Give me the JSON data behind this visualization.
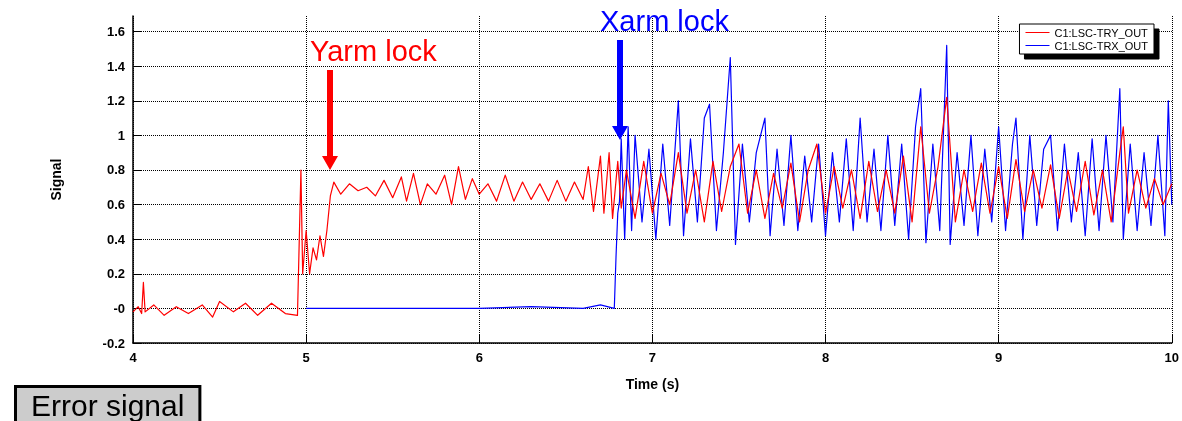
{
  "chart_data": {
    "type": "line",
    "xlabel": "Time (s)",
    "ylabel": "Signal",
    "xlim": [
      4,
      10
    ],
    "xticks": [
      4,
      5,
      6,
      7,
      8,
      9,
      10
    ],
    "ylim": [
      -0.2,
      1.69
    ],
    "yticks": [
      -0.2,
      {
        "value": 0,
        "label": "-0"
      },
      0.2,
      0.4,
      0.6,
      0.8,
      1,
      1.2,
      1.4,
      1.6
    ],
    "grid": true,
    "legend": "top right",
    "marker": "none",
    "line_style": "solid",
    "series": [
      {
        "name": "C1:LSC-TRY_OUT",
        "color": "#ff0000",
        "x": [
          4.0,
          4.03,
          4.05,
          4.06,
          4.07,
          4.12,
          4.18,
          4.25,
          4.32,
          4.4,
          4.46,
          4.5,
          4.58,
          4.65,
          4.72,
          4.8,
          4.88,
          4.95,
          4.97,
          4.98,
          5.0,
          5.02,
          5.04,
          5.06,
          5.08,
          5.1,
          5.12,
          5.14,
          5.16,
          5.2,
          5.25,
          5.3,
          5.35,
          5.4,
          5.45,
          5.5,
          5.55,
          5.58,
          5.62,
          5.66,
          5.7,
          5.75,
          5.8,
          5.84,
          5.88,
          5.92,
          5.96,
          6.0,
          6.05,
          6.1,
          6.15,
          6.2,
          6.25,
          6.3,
          6.35,
          6.4,
          6.45,
          6.5,
          6.55,
          6.6,
          6.63,
          6.66,
          6.7,
          6.72,
          6.75,
          6.77,
          6.8,
          6.82,
          6.85,
          6.9,
          6.95,
          7.0,
          7.05,
          7.1,
          7.15,
          7.2,
          7.25,
          7.3,
          7.35,
          7.4,
          7.45,
          7.5,
          7.55,
          7.6,
          7.65,
          7.7,
          7.75,
          7.8,
          7.85,
          7.9,
          7.95,
          8.0,
          8.05,
          8.1,
          8.15,
          8.2,
          8.25,
          8.3,
          8.35,
          8.4,
          8.45,
          8.5,
          8.55,
          8.6,
          8.65,
          8.7,
          8.75,
          8.8,
          8.85,
          8.9,
          8.95,
          9.0,
          9.05,
          9.1,
          9.15,
          9.2,
          9.25,
          9.3,
          9.35,
          9.4,
          9.45,
          9.5,
          9.55,
          9.6,
          9.65,
          9.7,
          9.72,
          9.75,
          9.8,
          9.85,
          9.9,
          9.95,
          10.0
        ],
        "values": [
          -0.02,
          0.01,
          -0.03,
          0.15,
          -0.02,
          0.02,
          -0.04,
          0.01,
          -0.03,
          0.02,
          -0.05,
          0.04,
          -0.02,
          0.03,
          -0.04,
          0.03,
          -0.03,
          -0.04,
          0.8,
          0.2,
          0.45,
          0.2,
          0.35,
          0.28,
          0.42,
          0.3,
          0.45,
          0.65,
          0.73,
          0.66,
          0.72,
          0.68,
          0.7,
          0.65,
          0.74,
          0.64,
          0.76,
          0.62,
          0.78,
          0.6,
          0.72,
          0.66,
          0.77,
          0.6,
          0.82,
          0.63,
          0.75,
          0.66,
          0.72,
          0.62,
          0.77,
          0.62,
          0.73,
          0.63,
          0.72,
          0.62,
          0.74,
          0.62,
          0.73,
          0.63,
          0.82,
          0.56,
          0.88,
          0.55,
          0.9,
          0.52,
          0.85,
          0.58,
          0.8,
          0.52,
          0.85,
          0.55,
          0.78,
          0.6,
          0.9,
          0.55,
          0.8,
          0.5,
          0.85,
          0.56,
          0.82,
          0.95,
          0.55,
          0.8,
          0.52,
          0.78,
          0.58,
          0.84,
          0.5,
          0.8,
          0.95,
          0.55,
          0.82,
          0.58,
          0.8,
          0.52,
          0.85,
          0.56,
          0.8,
          0.55,
          0.88,
          0.5,
          1.05,
          0.55,
          0.82,
          1.22,
          0.5,
          0.8,
          0.56,
          0.84,
          0.55,
          0.82,
          0.52,
          0.86,
          0.56,
          0.8,
          0.58,
          0.83,
          0.52,
          0.8,
          0.56,
          0.85,
          0.54,
          0.8,
          0.5,
          0.9,
          1.05,
          0.55,
          0.8,
          0.58,
          0.75,
          0.6,
          0.72
        ]
      },
      {
        "name": "C1:LSC-TRX_OUT",
        "color": "#0000ff",
        "x": [
          5.0,
          5.5,
          6.0,
          6.3,
          6.6,
          6.7,
          6.78,
          6.79,
          6.8,
          6.81,
          6.82,
          6.84,
          6.86,
          6.88,
          6.9,
          6.94,
          6.98,
          7.02,
          7.06,
          7.1,
          7.15,
          7.18,
          7.22,
          7.26,
          7.3,
          7.33,
          7.37,
          7.41,
          7.45,
          7.48,
          7.52,
          7.56,
          7.6,
          7.65,
          7.68,
          7.72,
          7.76,
          7.8,
          7.84,
          7.88,
          7.92,
          7.96,
          8.0,
          8.04,
          8.08,
          8.12,
          8.16,
          8.2,
          8.24,
          8.28,
          8.32,
          8.36,
          8.4,
          8.44,
          8.48,
          8.52,
          8.55,
          8.58,
          8.62,
          8.66,
          8.7,
          8.72,
          8.76,
          8.8,
          8.84,
          8.88,
          8.92,
          8.96,
          9.0,
          9.04,
          9.08,
          9.1,
          9.14,
          9.18,
          9.22,
          9.26,
          9.3,
          9.34,
          9.38,
          9.42,
          9.46,
          9.5,
          9.54,
          9.58,
          9.62,
          9.66,
          9.7,
          9.72,
          9.76,
          9.8,
          9.84,
          9.88,
          9.92,
          9.96,
          9.98,
          10.0
        ],
        "values": [
          0,
          0,
          0,
          0.01,
          0.0,
          0.02,
          0.0,
          0.3,
          0.55,
          0.62,
          0.98,
          0.4,
          1.05,
          0.45,
          1.0,
          0.5,
          0.92,
          0.4,
          0.95,
          0.48,
          1.2,
          0.42,
          0.98,
          0.5,
          1.1,
          1.18,
          0.45,
          0.9,
          1.45,
          0.37,
          0.95,
          0.5,
          0.9,
          1.1,
          0.42,
          0.92,
          0.48,
          1.0,
          0.45,
          0.88,
          0.5,
          0.95,
          0.42,
          0.9,
          0.5,
          0.98,
          0.45,
          1.1,
          0.5,
          0.92,
          0.45,
          1.0,
          0.48,
          0.95,
          0.4,
          1.05,
          1.27,
          0.38,
          0.95,
          0.45,
          1.52,
          0.37,
          0.9,
          0.48,
          1.0,
          0.42,
          0.92,
          0.5,
          1.05,
          0.45,
          0.95,
          1.1,
          0.4,
          1.0,
          0.48,
          0.92,
          1.0,
          0.45,
          0.95,
          0.5,
          0.9,
          0.42,
          0.98,
          0.45,
          1.0,
          0.5,
          1.27,
          0.4,
          0.95,
          0.45,
          0.9,
          0.48,
          1.0,
          0.42,
          1.2,
          0.6
        ]
      }
    ],
    "annotations": [
      "Yarm lock",
      "Xarm lock",
      "Error signal"
    ]
  }
}
